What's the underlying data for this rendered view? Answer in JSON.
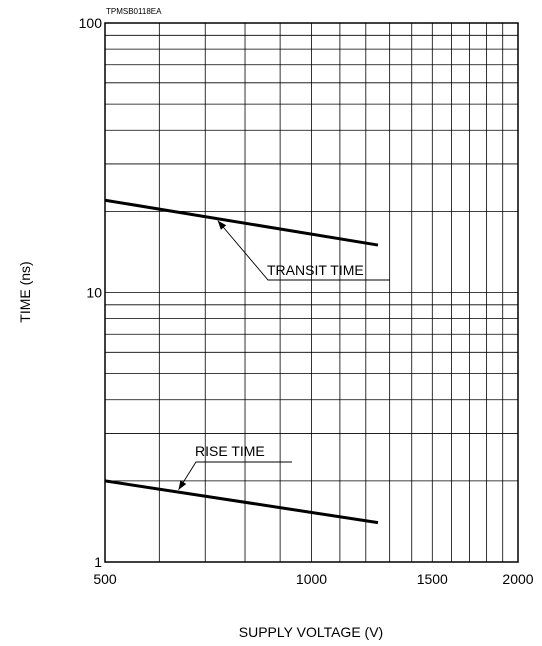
{
  "chart_data": {
    "type": "line",
    "figure_code": "TPMSB0118EA",
    "xlabel": "SUPPLY VOLTAGE (V)",
    "ylabel": "TIME (ns)",
    "xscale": "log",
    "yscale": "log",
    "xlim": [
      500,
      2000
    ],
    "ylim": [
      1,
      100
    ],
    "x_ticks": [
      "500",
      "1000",
      "1500",
      "2000"
    ],
    "y_ticks": [
      "1",
      "10",
      "100"
    ],
    "grid": true,
    "series": [
      {
        "name": "TRANSIT TIME",
        "x": [
          500,
          1250
        ],
        "y": [
          22,
          15
        ]
      },
      {
        "name": "RISE TIME",
        "x": [
          500,
          1250
        ],
        "y": [
          2.0,
          1.4
        ]
      }
    ],
    "annotations": [
      {
        "text": "TRANSIT TIME",
        "points_to": [
          730,
          18.8
        ]
      },
      {
        "text": "RISE TIME",
        "points_to": [
          640,
          1.87
        ]
      }
    ]
  }
}
